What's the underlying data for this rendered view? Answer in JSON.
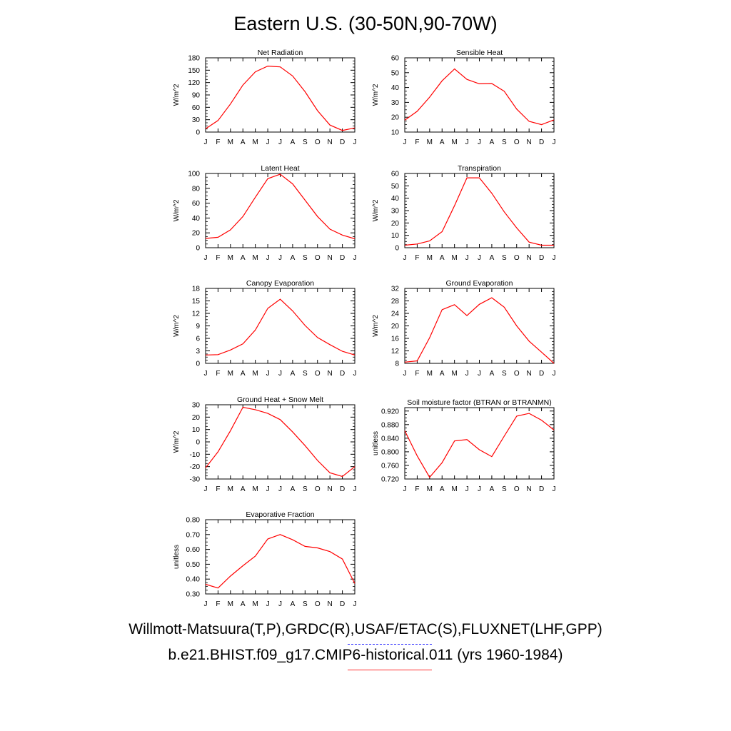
{
  "title": "Eastern U.S. (30-50N,90-70W)",
  "months": [
    "J",
    "F",
    "M",
    "A",
    "M",
    "J",
    "J",
    "A",
    "S",
    "O",
    "N",
    "D",
    "J"
  ],
  "legend": [
    {
      "text": "Willmott-Matsuura(T,P),GRDC(R),USAF/ETAC(S),FLUXNET(LHF,GPP)",
      "color": "#3030ff",
      "style": "dashed"
    },
    {
      "text": "b.e21.BHIST.f09_g17.CMIP6-historical.011 (yrs 1960-1984)",
      "color": "#ff3030",
      "style": "solid"
    }
  ],
  "chart_data": [
    {
      "type": "line",
      "title": "Net Radiation",
      "ylabel": "W/m^2",
      "ylim": [
        0,
        180
      ],
      "yticks": [
        "0",
        "30",
        "60",
        "90",
        "120",
        "150",
        "180"
      ],
      "series": [
        {
          "color": "#ff0000",
          "values": [
            8,
            28,
            68,
            114,
            146,
            160,
            158,
            136,
            98,
            52,
            17,
            4,
            10
          ]
        }
      ]
    },
    {
      "type": "line",
      "title": "Sensible Heat",
      "ylabel": "W/m^2",
      "ylim": [
        10,
        60
      ],
      "yticks": [
        "10",
        "20",
        "30",
        "40",
        "50",
        "60"
      ],
      "series": [
        {
          "color": "#ff0000",
          "values": [
            18,
            24,
            33.5,
            44.5,
            52.5,
            45.5,
            42.5,
            42.7,
            37.5,
            25.5,
            17.2,
            15,
            18.2
          ]
        }
      ]
    },
    {
      "type": "line",
      "title": "Latent Heat",
      "ylabel": "W/m^2",
      "ylim": [
        0,
        100
      ],
      "yticks": [
        "0",
        "20",
        "40",
        "60",
        "80",
        "100"
      ],
      "series": [
        {
          "color": "#ff0000",
          "values": [
            12.5,
            14,
            24,
            42,
            68,
            93,
            99,
            86,
            64,
            42,
            25,
            17,
            12
          ]
        }
      ]
    },
    {
      "type": "line",
      "title": "Transpiration",
      "ylabel": "W/m^2",
      "ylim": [
        0,
        60
      ],
      "yticks": [
        "0",
        "10",
        "20",
        "30",
        "40",
        "50",
        "60"
      ],
      "series": [
        {
          "color": "#ff0000",
          "values": [
            2,
            3,
            5.5,
            13,
            34,
            56.5,
            56.5,
            44,
            29,
            16,
            4.5,
            2,
            2
          ]
        }
      ]
    },
    {
      "type": "line",
      "title": "Canopy Evaporation",
      "ylabel": "W/m^2",
      "ylim": [
        0,
        18
      ],
      "yticks": [
        "0",
        "3",
        "6",
        "9",
        "12",
        "15",
        "18"
      ],
      "series": [
        {
          "color": "#ff0000",
          "values": [
            2,
            2.1,
            3.2,
            4.7,
            8,
            13.2,
            15.4,
            12.6,
            9.1,
            6.2,
            4.5,
            2.9,
            2
          ]
        }
      ]
    },
    {
      "type": "line",
      "title": "Ground Evaporation",
      "ylabel": "W/m^2",
      "ylim": [
        8,
        32
      ],
      "yticks": [
        "8",
        "12",
        "16",
        "20",
        "24",
        "28",
        "32"
      ],
      "series": [
        {
          "color": "#ff0000",
          "values": [
            8.4,
            8.8,
            16.2,
            25.2,
            26.8,
            23.3,
            26.9,
            29,
            26,
            20,
            15.1,
            11.6,
            8
          ]
        }
      ]
    },
    {
      "type": "line",
      "title": "Ground Heat + Snow Melt",
      "ylabel": "W/m^2",
      "ylim": [
        -30,
        30
      ],
      "yticks": [
        "-30",
        "-20",
        "-10",
        "0",
        "10",
        "20",
        "30"
      ],
      "series": [
        {
          "color": "#ff0000",
          "values": [
            -21,
            -8,
            9,
            28,
            26,
            23,
            18,
            8,
            -3,
            -15,
            -25,
            -28,
            -20
          ]
        }
      ]
    },
    {
      "type": "line",
      "title": "Soil moisture factor (BTRAN or BTRANMN)",
      "ylabel": "unitless",
      "ylim": [
        0.72,
        0.93
      ],
      "yticks": [
        "0.720",
        "0.760",
        "0.800",
        "0.840",
        "0.880",
        "0.920"
      ],
      "series": [
        {
          "color": "#ff0000",
          "values": [
            0.862,
            0.788,
            0.725,
            0.768,
            0.832,
            0.836,
            0.806,
            0.786,
            0.846,
            0.905,
            0.913,
            0.893,
            0.864
          ]
        }
      ]
    },
    {
      "type": "line",
      "title": "Evaporative Fraction",
      "ylabel": "unitless",
      "ylim": [
        0.3,
        0.8
      ],
      "yticks": [
        "0.30",
        "0.40",
        "0.50",
        "0.60",
        "0.70",
        "0.80"
      ],
      "series": [
        {
          "color": "#ff0000",
          "values": [
            0.365,
            0.34,
            0.42,
            0.49,
            0.555,
            0.67,
            0.7,
            0.665,
            0.62,
            0.61,
            0.585,
            0.535,
            0.37
          ]
        }
      ]
    }
  ]
}
